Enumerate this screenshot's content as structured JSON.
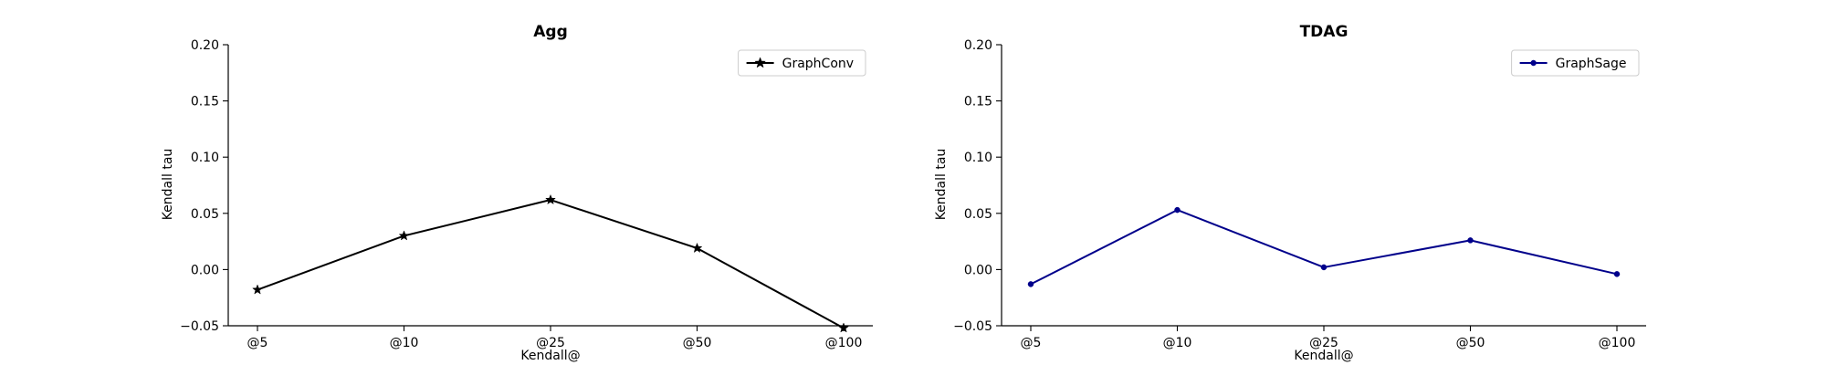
{
  "chart_data": [
    {
      "type": "line",
      "title": "Agg",
      "xlabel": "Kendall@",
      "ylabel": "Kendall tau",
      "categories": [
        "@5",
        "@10",
        "@25",
        "@50",
        "@100"
      ],
      "yticks": [
        "−0.05",
        "0.00",
        "0.05",
        "0.10",
        "0.15",
        "0.20"
      ],
      "ytick_values": [
        -0.05,
        0.0,
        0.05,
        0.1,
        0.15,
        0.2
      ],
      "ylim": [
        -0.05,
        0.2
      ],
      "grid": false,
      "legend_position": "top-right",
      "series": [
        {
          "name": "GraphConv",
          "values": [
            -0.018,
            0.03,
            0.062,
            0.019,
            -0.052
          ],
          "color": "#000000",
          "marker": "star"
        }
      ]
    },
    {
      "type": "line",
      "title": "TDAG",
      "xlabel": "Kendall@",
      "ylabel": "Kendall tau",
      "categories": [
        "@5",
        "@10",
        "@25",
        "@50",
        "@100"
      ],
      "yticks": [
        "−0.05",
        "0.00",
        "0.05",
        "0.10",
        "0.15",
        "0.20"
      ],
      "ytick_values": [
        -0.05,
        0.0,
        0.05,
        0.1,
        0.15,
        0.2
      ],
      "ylim": [
        -0.05,
        0.2
      ],
      "grid": false,
      "legend_position": "top-right",
      "series": [
        {
          "name": "GraphSage",
          "values": [
            -0.013,
            0.053,
            0.002,
            0.026,
            -0.004
          ],
          "color": "#00008b",
          "marker": "dot"
        }
      ]
    }
  ]
}
